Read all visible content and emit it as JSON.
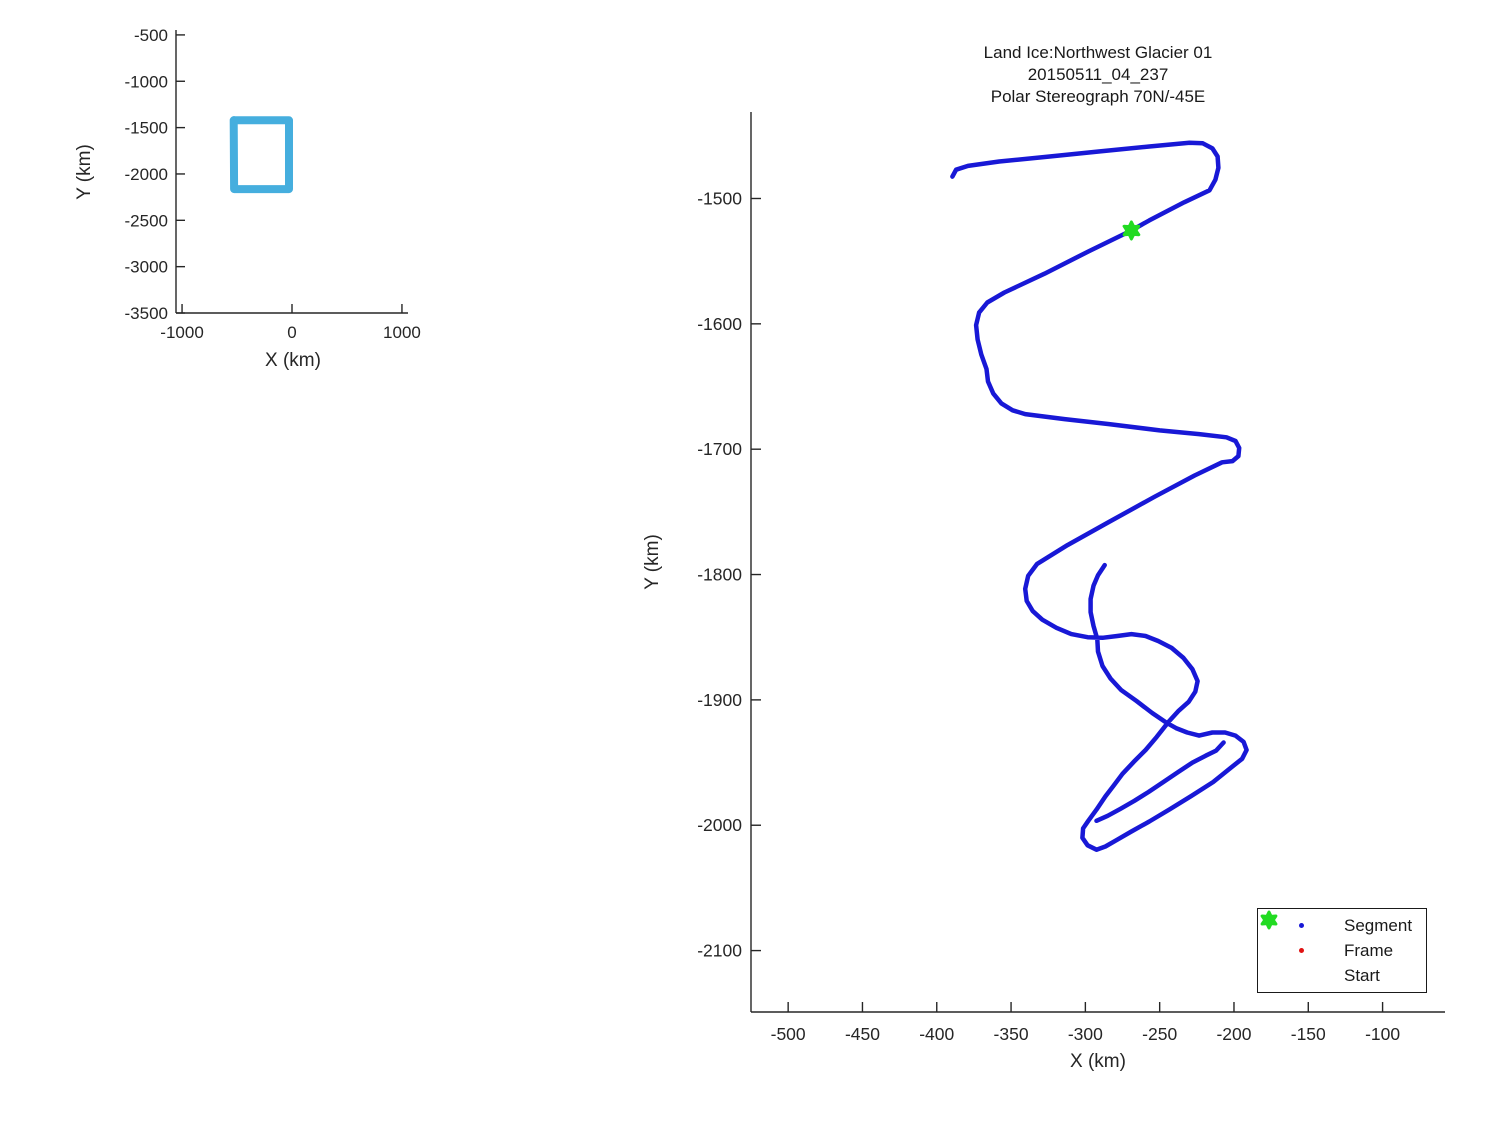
{
  "figure": {
    "background": "#ffffff",
    "axis_color": "#262626",
    "text_color": "#1a1a1a"
  },
  "chart_data": [
    {
      "id": "overview",
      "type": "line",
      "title": "",
      "xlabel": "X (km)",
      "ylabel": "Y (km)",
      "xlim": [
        -1055,
        1055
      ],
      "ylim": [
        -3500,
        -447
      ],
      "xticks": [
        -1000,
        0,
        1000
      ],
      "yticks": [
        -500,
        -1000,
        -1500,
        -2000,
        -2500,
        -3000,
        -3500
      ],
      "grid": false,
      "legend_position": null,
      "series": [
        {
          "name": "coverage-box-outline",
          "color": "#45AEDE",
          "width": 8,
          "points": [
            [
              -527,
              -1421
            ],
            [
              -27,
              -1421
            ],
            [
              -27,
              -2163
            ],
            [
              -527,
              -2163
            ],
            [
              -530,
              -1421
            ]
          ]
        }
      ]
    },
    {
      "id": "main",
      "type": "line",
      "title": "Land Ice:Northwest Glacier 01\n20150511_04_237\nPolar Stereograph 70N/-45E",
      "title_lines": [
        "Land Ice:Northwest Glacier 01",
        "20150511_04_237",
        "Polar Stereograph 70N/-45E"
      ],
      "xlabel": "X (km)",
      "ylabel": "Y (km)",
      "xlim": [
        -525,
        -58
      ],
      "ylim": [
        -2149,
        -1431
      ],
      "xticks": [
        -500,
        -450,
        -400,
        -350,
        -300,
        -250,
        -200,
        -150,
        -100
      ],
      "yticks": [
        -1500,
        -1600,
        -1700,
        -1800,
        -1900,
        -2000,
        -2100
      ],
      "grid": false,
      "legend_position": "lower right",
      "start_marker": {
        "x": -269,
        "y": -1525.5,
        "color": "#22DB22"
      },
      "legend": {
        "items": [
          {
            "label": "Segment",
            "marker": "dot",
            "color": "#1818D6"
          },
          {
            "label": "Frame",
            "marker": "dot",
            "color": "#E01212"
          },
          {
            "label": "Start",
            "marker": "hexagram",
            "color": "#22DB22"
          }
        ]
      },
      "series": [
        {
          "name": "segment-track",
          "color": "#1818D6",
          "width": 4.5,
          "points": [
            [
              -389.5,
              -1482.5
            ],
            [
              -387,
              -1477
            ],
            [
              -379,
              -1474
            ],
            [
              -358,
              -1470.5
            ],
            [
              -324,
              -1466.5
            ],
            [
              -291,
              -1462.5
            ],
            [
              -257,
              -1458.5
            ],
            [
              -230,
              -1455.5
            ],
            [
              -221,
              -1456
            ],
            [
              -214.5,
              -1460
            ],
            [
              -211,
              -1466.5
            ],
            [
              -210.5,
              -1475.5
            ],
            [
              -212.5,
              -1485
            ],
            [
              -216.5,
              -1493.5
            ],
            [
              -233.5,
              -1503
            ],
            [
              -257,
              -1517.5
            ],
            [
              -269,
              -1525.5
            ],
            [
              -297.5,
              -1542
            ],
            [
              -327.5,
              -1560
            ],
            [
              -354.5,
              -1575
            ],
            [
              -366,
              -1583
            ],
            [
              -371.5,
              -1591
            ],
            [
              -373.5,
              -1601
            ],
            [
              -372.5,
              -1612.5
            ],
            [
              -370,
              -1624.5
            ],
            [
              -366.5,
              -1636
            ],
            [
              -365.5,
              -1646
            ],
            [
              -362,
              -1655.5
            ],
            [
              -356.5,
              -1663.5
            ],
            [
              -349,
              -1669
            ],
            [
              -340.5,
              -1672
            ],
            [
              -314,
              -1676
            ],
            [
              -284,
              -1680
            ],
            [
              -250,
              -1685
            ],
            [
              -223.5,
              -1688
            ],
            [
              -205,
              -1690.5
            ],
            [
              -199,
              -1693.5
            ],
            [
              -196.5,
              -1699
            ],
            [
              -197,
              -1705.5
            ],
            [
              -201,
              -1709.5
            ],
            [
              -208,
              -1710.5
            ],
            [
              -226.5,
              -1721
            ],
            [
              -253.5,
              -1738
            ],
            [
              -284,
              -1758
            ],
            [
              -312,
              -1776.5
            ],
            [
              -332.5,
              -1791.5
            ],
            [
              -338.5,
              -1801
            ],
            [
              -340.5,
              -1811.5
            ],
            [
              -339.5,
              -1821
            ],
            [
              -335.5,
              -1829
            ],
            [
              -329,
              -1836
            ],
            [
              -319.5,
              -1842.5
            ],
            [
              -309.5,
              -1847.5
            ],
            [
              -298.5,
              -1850
            ],
            [
              -288.5,
              -1850.5
            ],
            [
              -278.5,
              -1849
            ],
            [
              -269,
              -1847.5
            ],
            [
              -259.5,
              -1849
            ],
            [
              -251,
              -1853
            ],
            [
              -242,
              -1858.5
            ],
            [
              -234,
              -1866.5
            ],
            [
              -228,
              -1875.5
            ],
            [
              -224.5,
              -1885
            ],
            [
              -226,
              -1893.5
            ],
            [
              -230.5,
              -1901.5
            ],
            [
              -237.5,
              -1909
            ],
            [
              -244,
              -1917.5
            ],
            [
              -252,
              -1929.5
            ],
            [
              -259.5,
              -1940
            ],
            [
              -267.5,
              -1949.5
            ],
            [
              -275,
              -1959
            ],
            [
              -281,
              -1968.5
            ],
            [
              -286.5,
              -1977
            ],
            [
              -292.5,
              -1987.5
            ],
            [
              -298,
              -1996.5
            ],
            [
              -301.5,
              -2002.5
            ],
            [
              -302,
              -2010
            ],
            [
              -298.5,
              -2016
            ],
            [
              -292.5,
              -2019.5
            ],
            [
              -286.5,
              -2017
            ],
            [
              -280,
              -2012.5
            ],
            [
              -269,
              -2005
            ],
            [
              -257,
              -1997
            ],
            [
              -243.5,
              -1987.5
            ],
            [
              -228.5,
              -1976.5
            ],
            [
              -214,
              -1965.5
            ],
            [
              -202,
              -1954
            ],
            [
              -194.5,
              -1947
            ],
            [
              -191.5,
              -1940
            ],
            [
              -193.5,
              -1933.5
            ],
            [
              -199,
              -1928.5
            ],
            [
              -206,
              -1926
            ],
            [
              -214.5,
              -1926
            ],
            [
              -223.5,
              -1928.5
            ],
            [
              -231.5,
              -1926
            ],
            [
              -239,
              -1922.5
            ],
            [
              -245,
              -1918.5
            ],
            [
              -255,
              -1910.5
            ],
            [
              -265.5,
              -1901
            ],
            [
              -276,
              -1892
            ],
            [
              -283,
              -1883
            ],
            [
              -288.5,
              -1873
            ],
            [
              -291.5,
              -1861.5
            ],
            [
              -292,
              -1851.5
            ],
            [
              -294.5,
              -1841
            ],
            [
              -296.5,
              -1830
            ],
            [
              -296.5,
              -1819.5
            ],
            [
              -294.5,
              -1809
            ],
            [
              -291.5,
              -1800.5
            ],
            [
              -287,
              -1792.5
            ]
          ]
        },
        {
          "name": "segment-track-inner-pass",
          "color": "#1818D6",
          "width": 4.5,
          "points": [
            [
              -207,
              -1934
            ],
            [
              -212,
              -1940.5
            ],
            [
              -219,
              -1944.5
            ],
            [
              -228,
              -1950
            ],
            [
              -237.5,
              -1957.5
            ],
            [
              -247.5,
              -1965.5
            ],
            [
              -257.5,
              -1973.5
            ],
            [
              -267,
              -1980.5
            ],
            [
              -276.5,
              -1987
            ],
            [
              -285,
              -1992.5
            ],
            [
              -292.5,
              -1996.5
            ]
          ]
        }
      ]
    }
  ]
}
